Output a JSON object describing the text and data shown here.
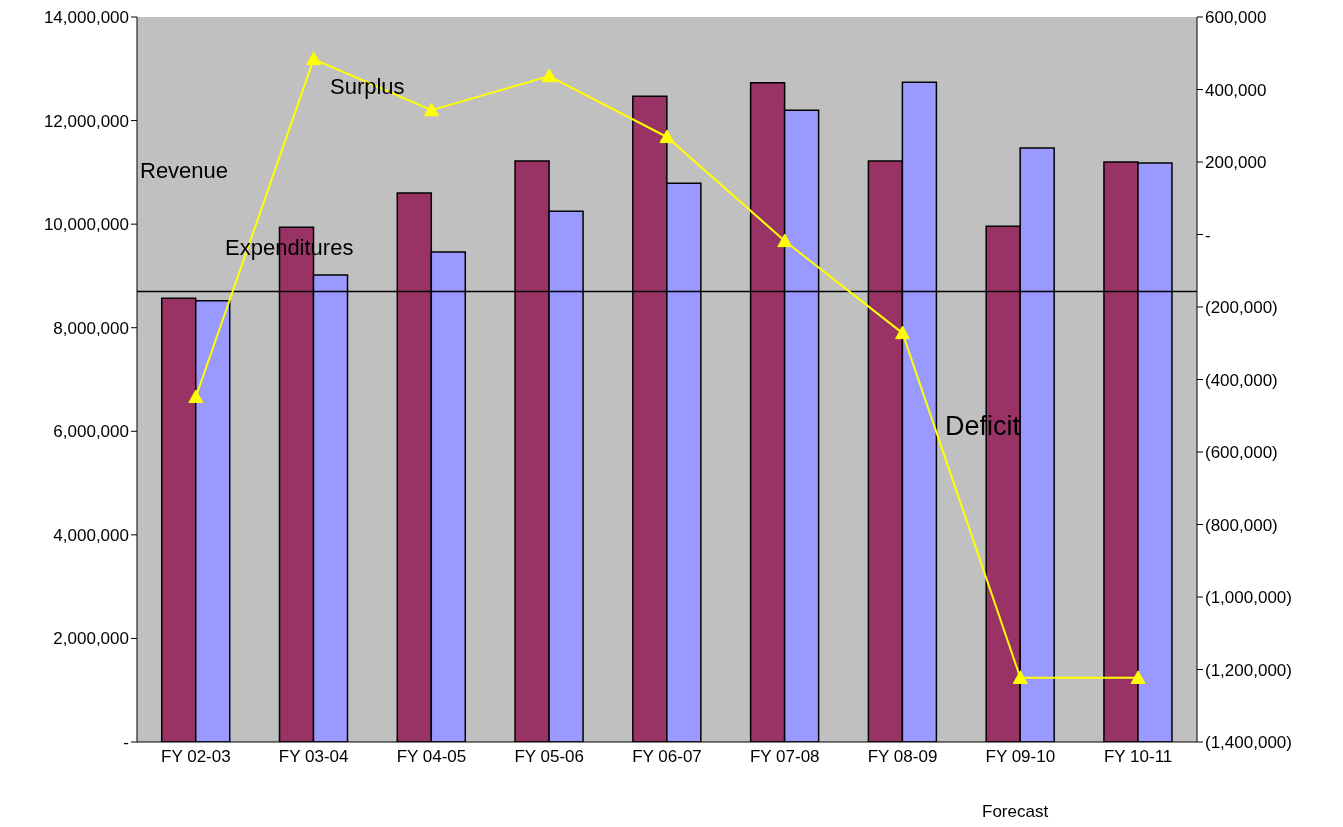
{
  "chart_data": {
    "type": "bar",
    "categories": [
      "FY 02-03",
      "FY 03-04",
      "FY 04-05",
      "FY 05-06",
      "FY 06-07",
      "FY 07-08",
      "FY 08-09",
      "FY 09-10",
      "FY 10-11"
    ],
    "series": [
      {
        "color": "#993366",
        "values": [
          8570000,
          9940000,
          10600000,
          11220000,
          12470000,
          12730000,
          11220000,
          9960000,
          11200000
        ]
      },
      {
        "color": "#9999ff",
        "values": [
          8520000,
          9020000,
          9460000,
          10250000,
          10790000,
          12200000,
          12740000,
          11470000,
          11180000
        ]
      },
      {
        "type": "line",
        "axis": "y2",
        "color": "#ffff00",
        "marker": "triangle",
        "values": [
          -448000,
          484000,
          343000,
          437000,
          269000,
          -18000,
          -272000,
          -1223000,
          -1223000
        ]
      }
    ],
    "ylim": [
      0,
      14000000
    ],
    "yticks": [
      {
        "value": 0,
        "label": "-"
      },
      {
        "value": 2000000,
        "label": "2,000,000"
      },
      {
        "value": 4000000,
        "label": "4,000,000"
      },
      {
        "value": 6000000,
        "label": "6,000,000"
      },
      {
        "value": 8000000,
        "label": "8,000,000"
      },
      {
        "value": 10000000,
        "label": "10,000,000"
      },
      {
        "value": 12000000,
        "label": "12,000,000"
      },
      {
        "value": 14000000,
        "label": "14,000,000"
      }
    ],
    "y2lim": [
      -1400000,
      600000
    ],
    "y2ticks": [
      {
        "value": -1400000,
        "label": "(1,400,000)"
      },
      {
        "value": -1200000,
        "label": "(1,200,000)"
      },
      {
        "value": -1000000,
        "label": "(1,000,000)"
      },
      {
        "value": -800000,
        "label": "(800,000)"
      },
      {
        "value": -600000,
        "label": "(600,000)"
      },
      {
        "value": -400000,
        "label": "(400,000)"
      },
      {
        "value": -200000,
        "label": "(200,000)"
      },
      {
        "value": 0,
        "label": "-"
      },
      {
        "value": 200000,
        "label": "200,000"
      },
      {
        "value": 400000,
        "label": "400,000"
      },
      {
        "value": 600000,
        "label": "600,000"
      }
    ],
    "ref_lines": [
      {
        "axis": "y",
        "value": 8700000,
        "color": "#000000"
      }
    ],
    "annotations": [
      "Revenue",
      "Expenditures",
      "Surplus",
      "Deficit",
      "Forecast"
    ],
    "grid": false,
    "legend": false
  }
}
